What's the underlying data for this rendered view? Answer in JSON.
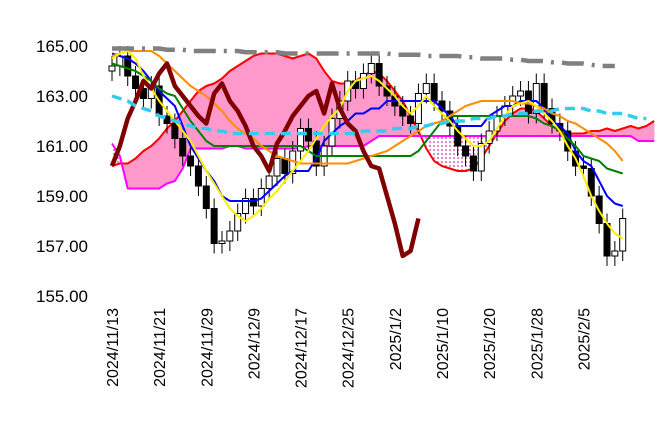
{
  "chart_data": {
    "type": "candlestick",
    "categories": [
      "2024/11/13",
      null,
      null,
      null,
      null,
      null,
      "2024/11/21",
      null,
      null,
      null,
      null,
      null,
      "2024/11/29",
      null,
      null,
      null,
      null,
      null,
      "2024/12/9",
      null,
      null,
      null,
      null,
      null,
      "2024/12/17",
      null,
      null,
      null,
      null,
      null,
      "2024/12/25",
      null,
      null,
      null,
      null,
      null,
      "2025/1/2",
      null,
      null,
      null,
      null,
      null,
      "2025/1/10",
      null,
      null,
      null,
      null,
      null,
      "2025/1/20",
      null,
      null,
      null,
      null,
      null,
      "2025/1/28",
      null,
      null,
      null,
      null,
      null,
      "2025/2/5",
      null,
      null,
      null,
      null,
      null,
      null,
      null,
      null,
      null
    ],
    "open": [
      164.0,
      164.2,
      164.6,
      163.8,
      163.3,
      162.9,
      163.4,
      162.2,
      161.9,
      161.3,
      160.6,
      160.2,
      159.4,
      158.5,
      157.1,
      157.2,
      157.6,
      158.3,
      158.9,
      158.6,
      159.3,
      159.8,
      160.5,
      159.9,
      160.8,
      161.7,
      161.2,
      160.2,
      161.0,
      162.1,
      162.8,
      163.6,
      163.3,
      163.9,
      164.3,
      163.4,
      163.0,
      162.6,
      162.2,
      161.9,
      163.1,
      163.5,
      162.8,
      162.4,
      161.8,
      161.0,
      160.6,
      160.0,
      161.1,
      161.6,
      162.2,
      162.6,
      163.0,
      163.2,
      162.3,
      163.5,
      162.5,
      161.9,
      161.6,
      160.8,
      160.2,
      160.1,
      159.0,
      157.9,
      156.6,
      156.8,
      null,
      null,
      null,
      null
    ],
    "high": [
      164.6,
      165.0,
      165.0,
      164.2,
      163.7,
      163.8,
      163.8,
      162.6,
      162.3,
      161.7,
      161.0,
      160.6,
      159.8,
      158.9,
      157.6,
      158.0,
      158.7,
      159.3,
      159.3,
      159.7,
      160.2,
      160.9,
      160.9,
      161.2,
      162.1,
      162.1,
      161.6,
      161.4,
      162.5,
      163.2,
      164.0,
      164.0,
      164.3,
      164.7,
      164.7,
      163.8,
      163.4,
      163.0,
      162.6,
      163.5,
      163.9,
      163.9,
      163.2,
      162.8,
      162.2,
      161.4,
      161.0,
      161.5,
      162.0,
      162.6,
      163.0,
      163.4,
      163.6,
      163.6,
      163.9,
      163.9,
      162.9,
      162.3,
      162.0,
      161.2,
      160.6,
      160.5,
      159.4,
      158.3,
      157.2,
      158.5,
      null,
      null,
      null,
      null
    ],
    "low": [
      163.6,
      163.8,
      163.4,
      162.9,
      162.5,
      162.5,
      161.8,
      161.5,
      160.9,
      160.2,
      159.8,
      159.0,
      158.1,
      156.7,
      156.7,
      156.8,
      157.2,
      157.9,
      158.2,
      158.2,
      158.9,
      159.4,
      159.5,
      159.5,
      160.4,
      160.8,
      159.8,
      159.8,
      160.6,
      161.7,
      162.4,
      162.9,
      162.9,
      163.5,
      163.0,
      162.6,
      162.2,
      161.8,
      161.5,
      161.5,
      162.7,
      162.4,
      162.0,
      161.4,
      160.6,
      160.2,
      159.6,
      159.6,
      160.7,
      161.2,
      161.8,
      162.2,
      162.6,
      161.9,
      161.9,
      162.1,
      161.5,
      161.2,
      160.4,
      159.8,
      159.7,
      158.6,
      157.5,
      156.2,
      156.2,
      156.4,
      null,
      null,
      null,
      null
    ],
    "close": [
      164.2,
      164.6,
      163.8,
      163.3,
      162.9,
      163.4,
      162.2,
      161.9,
      161.3,
      160.6,
      160.2,
      159.4,
      158.5,
      157.1,
      157.2,
      157.6,
      158.3,
      158.9,
      158.6,
      159.3,
      159.8,
      160.5,
      159.9,
      160.8,
      161.7,
      161.2,
      160.2,
      161.0,
      162.1,
      162.8,
      163.6,
      163.3,
      163.9,
      164.3,
      163.4,
      163.0,
      162.6,
      162.2,
      161.9,
      163.1,
      163.5,
      162.8,
      162.4,
      161.8,
      161.0,
      160.6,
      160.0,
      161.1,
      161.6,
      162.2,
      162.6,
      163.0,
      163.2,
      162.3,
      163.5,
      162.5,
      161.9,
      161.6,
      160.8,
      160.2,
      160.1,
      159.0,
      157.9,
      156.6,
      156.8,
      158.1,
      null,
      null,
      null,
      null
    ],
    "up_color": "#ffffff",
    "down_color": "#000000",
    "ylim": [
      155,
      166
    ],
    "yticks": [
      {
        "value": 155,
        "label": "155.00"
      },
      {
        "value": 157,
        "label": "157.00"
      },
      {
        "value": 159,
        "label": "159.00"
      },
      {
        "value": 161,
        "label": "161.00"
      },
      {
        "value": 163,
        "label": "163.00"
      },
      {
        "value": 165,
        "label": "165.00"
      }
    ],
    "cloud": {
      "span_a": {
        "color": "#ff0000",
        "values": [
          160.2,
          160.3,
          160.3,
          160.5,
          160.8,
          161.0,
          161.3,
          161.7,
          162.0,
          162.4,
          162.8,
          163.2,
          163.4,
          163.5,
          163.7,
          164.0,
          164.2,
          164.4,
          164.6,
          164.7,
          164.7,
          164.7,
          164.6,
          164.5,
          164.6,
          164.7,
          164.5,
          164.0,
          163.6,
          163.5,
          163.5,
          163.6,
          163.8,
          164.0,
          163.9,
          163.6,
          163.2,
          162.8,
          162.2,
          161.6,
          160.9,
          160.4,
          160.2,
          160.1,
          160.0,
          160.0,
          160.1,
          160.5,
          161.0,
          161.5,
          162.0,
          162.3,
          162.5,
          162.5,
          162.4,
          162.1,
          161.8,
          161.6,
          161.5,
          161.5,
          161.5,
          161.6,
          161.6,
          161.7,
          161.6,
          161.7,
          161.8,
          161.7,
          161.8,
          162.0
        ]
      },
      "span_b": {
        "color": "#ff00ff",
        "values": [
          161.1,
          160.6,
          159.3,
          159.3,
          159.3,
          159.3,
          159.3,
          159.5,
          159.6,
          160.1,
          160.9,
          160.9,
          160.9,
          160.9,
          160.9,
          161.0,
          161.0,
          160.9,
          160.9,
          160.9,
          160.9,
          160.9,
          160.9,
          160.9,
          160.9,
          161.0,
          161.0,
          161.0,
          161.0,
          161.0,
          161.0,
          161.0,
          161.0,
          161.2,
          161.4,
          161.4,
          161.4,
          161.4,
          161.4,
          161.4,
          161.4,
          161.4,
          161.4,
          161.4,
          161.4,
          161.4,
          161.4,
          161.4,
          161.4,
          161.4,
          161.4,
          161.4,
          161.4,
          161.4,
          161.4,
          161.4,
          161.4,
          161.4,
          161.4,
          161.4,
          161.4,
          161.4,
          161.4,
          161.4,
          161.4,
          161.4,
          161.4,
          161.2,
          161.2,
          161.2
        ]
      },
      "fill_color": "#ff99cc",
      "dots_color": "#cc33aa"
    },
    "lines": [
      {
        "color": "#0000ff",
        "line_style": "solid",
        "values": [
          164.7,
          164.6,
          164.5,
          164.3,
          164.0,
          163.6,
          163.2,
          162.9,
          162.6,
          161.8,
          161.0,
          160.5,
          160.0,
          159.6,
          159.0,
          158.8,
          158.8,
          158.8,
          158.8,
          158.9,
          159.2,
          159.5,
          159.8,
          160.0,
          160.0,
          160.0,
          160.5,
          161.2,
          161.5,
          161.8,
          162.0,
          162.3,
          162.3,
          162.5,
          162.5,
          162.8,
          162.8,
          162.8,
          162.8,
          162.8,
          162.8,
          162.8,
          162.5,
          162.2,
          161.8,
          161.8,
          161.8,
          161.8,
          162.2,
          162.4,
          162.6,
          162.6,
          162.8,
          162.8,
          162.8,
          162.5,
          162.0,
          161.8,
          161.5,
          160.8,
          160.4,
          160.2,
          159.6,
          159.0,
          158.7,
          158.6,
          null,
          null,
          null,
          null
        ]
      },
      {
        "color": "#008000",
        "line_style": "solid",
        "values": [
          164.3,
          164.2,
          164.1,
          164.0,
          163.8,
          163.6,
          163.3,
          163.1,
          163.0,
          162.5,
          162.0,
          161.6,
          161.2,
          161.0,
          161.0,
          161.0,
          161.0,
          161.0,
          161.0,
          161.0,
          161.0,
          161.0,
          161.0,
          161.0,
          161.0,
          160.8,
          160.6,
          160.6,
          160.6,
          160.6,
          160.6,
          160.6,
          160.6,
          160.6,
          160.6,
          160.6,
          160.6,
          160.6,
          160.6,
          160.8,
          161.2,
          161.6,
          162.0,
          162.2,
          162.2,
          162.2,
          162.2,
          162.2,
          162.2,
          162.2,
          162.2,
          162.2,
          162.2,
          162.2,
          162.1,
          161.9,
          161.8,
          161.6,
          161.3,
          161.0,
          160.6,
          160.5,
          160.4,
          160.1,
          160.0,
          159.9,
          null,
          null,
          null,
          null
        ]
      },
      {
        "color": "#ff8c00",
        "line_style": "solid",
        "values": [
          164.6,
          164.7,
          164.8,
          164.8,
          164.8,
          164.8,
          164.6,
          164.3,
          164.0,
          163.7,
          163.4,
          163.2,
          163.0,
          162.7,
          162.4,
          162.0,
          161.7,
          161.5,
          161.3,
          161.0,
          160.8,
          160.6,
          160.5,
          160.4,
          160.3,
          160.3,
          160.3,
          160.3,
          160.3,
          160.3,
          160.3,
          160.4,
          160.5,
          160.6,
          160.7,
          160.8,
          161.0,
          161.2,
          161.4,
          161.6,
          161.8,
          161.9,
          162.0,
          162.2,
          162.4,
          162.6,
          162.7,
          162.8,
          162.8,
          162.8,
          162.8,
          162.8,
          162.7,
          162.7,
          162.6,
          162.5,
          162.3,
          162.2,
          162.0,
          161.9,
          161.7,
          161.5,
          161.3,
          161.1,
          160.8,
          160.4,
          null,
          null,
          null,
          null
        ]
      },
      {
        "color": "#ffee00",
        "line_style": "solid",
        "values": [
          164.5,
          164.7,
          164.8,
          164.5,
          163.8,
          163.3,
          162.8,
          162.4,
          162.0,
          161.6,
          161.2,
          160.6,
          160.0,
          159.5,
          159.0,
          158.5,
          158.2,
          158.0,
          158.2,
          158.5,
          158.9,
          159.2,
          159.6,
          160.0,
          160.4,
          160.8,
          161.3,
          161.8,
          162.2,
          162.5,
          163.2,
          163.6,
          163.7,
          163.8,
          163.6,
          163.3,
          163.0,
          162.6,
          162.3,
          162.6,
          163.0,
          162.6,
          162.3,
          162.0,
          161.6,
          161.3,
          161.0,
          161.0,
          161.2,
          161.7,
          162.2,
          162.6,
          162.7,
          162.8,
          162.6,
          162.3,
          162.0,
          161.6,
          161.0,
          160.5,
          159.8,
          159.0,
          158.4,
          157.9,
          157.5,
          157.3,
          null,
          null,
          null,
          null
        ]
      },
      {
        "color": "#800000",
        "line_style": "bold",
        "values": [
          160.2,
          161.0,
          162.1,
          162.8,
          163.6,
          163.3,
          163.9,
          164.3,
          163.4,
          163.0,
          162.6,
          162.2,
          161.9,
          163.1,
          163.5,
          162.8,
          162.4,
          161.8,
          161.0,
          160.6,
          160.0,
          161.1,
          161.6,
          162.2,
          162.6,
          163.0,
          163.2,
          162.3,
          163.5,
          162.5,
          161.9,
          161.6,
          160.8,
          160.2,
          160.1,
          159.0,
          157.9,
          156.6,
          156.8,
          158.1,
          null,
          null,
          null,
          null,
          null,
          null,
          null,
          null,
          null,
          null,
          null,
          null,
          null,
          null,
          null,
          null,
          null,
          null,
          null,
          null,
          null,
          null,
          null,
          null,
          null,
          null,
          null,
          null,
          null,
          null
        ]
      },
      {
        "color": "#33ccee",
        "line_style": "dashed",
        "values": [
          163.0,
          162.9,
          162.8,
          162.6,
          162.5,
          162.4,
          162.2,
          162.1,
          162.0,
          161.9,
          161.8,
          161.7,
          161.7,
          161.6,
          161.6,
          161.5,
          161.5,
          161.5,
          161.5,
          161.5,
          161.5,
          161.5,
          161.5,
          161.5,
          161.5,
          161.5,
          161.5,
          161.5,
          161.5,
          161.5,
          161.5,
          161.5,
          161.6,
          161.6,
          161.6,
          161.6,
          161.7,
          161.7,
          161.7,
          161.8,
          161.8,
          161.9,
          161.9,
          162.0,
          162.0,
          162.0,
          162.1,
          162.1,
          162.1,
          162.2,
          162.2,
          162.3,
          162.3,
          162.3,
          162.4,
          162.4,
          162.4,
          162.5,
          162.5,
          162.5,
          162.5,
          162.4,
          162.4,
          162.3,
          162.3,
          162.3,
          162.2,
          162.1,
          162.1,
          null
        ]
      },
      {
        "color": "#808080",
        "line_style": "dashdot",
        "values": [
          164.9,
          164.9,
          164.9,
          164.9,
          164.9,
          164.9,
          164.9,
          164.85,
          164.85,
          164.85,
          164.8,
          164.8,
          164.8,
          164.8,
          164.8,
          164.8,
          164.8,
          164.75,
          164.75,
          164.75,
          164.75,
          164.75,
          164.7,
          164.7,
          164.7,
          164.7,
          164.7,
          164.7,
          164.7,
          164.7,
          164.7,
          164.7,
          164.7,
          164.7,
          164.7,
          164.7,
          164.65,
          164.65,
          164.65,
          164.65,
          164.6,
          164.6,
          164.6,
          164.6,
          164.6,
          164.55,
          164.55,
          164.5,
          164.5,
          164.5,
          164.5,
          164.45,
          164.45,
          164.4,
          164.4,
          164.4,
          164.35,
          164.35,
          164.3,
          164.3,
          164.3,
          164.25,
          164.2,
          164.2,
          164.2,
          null,
          null,
          null,
          null,
          null
        ]
      }
    ]
  }
}
